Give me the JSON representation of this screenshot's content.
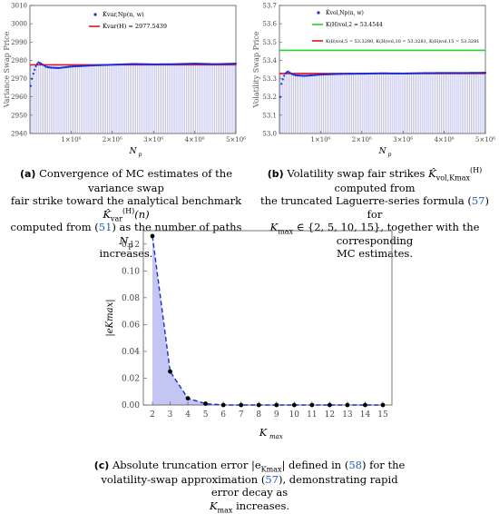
{
  "chart_data": [
    {
      "type": "bar+scatter",
      "ylabel": "Variance Swap Price",
      "xlabel": "N_p",
      "xlim": [
        0,
        5000000
      ],
      "ylim": [
        2940,
        3010
      ],
      "y_ticks": [
        2940,
        2950,
        2960,
        2970,
        2980,
        2990,
        3000,
        3010
      ],
      "x_ticks": [
        1000000,
        2000000,
        3000000,
        4000000,
        5000000
      ],
      "x_tick_labels": [
        "1×10⁶",
        "2×10⁶",
        "3×10⁶",
        "4×10⁶",
        "5×10⁶"
      ],
      "legend": [
        {
          "name": "K̂var,Np(n, w)",
          "color": "#1f2fd6",
          "marker": "point"
        },
        {
          "name": "K̂var(H) = 2977.5439",
          "color": "#e0141e",
          "marker": "line"
        }
      ],
      "benchmark": 2977.5439,
      "mc_series": {
        "x": [
          20000,
          60000,
          100000,
          150000,
          200000,
          300000,
          400000,
          500000,
          700000,
          1000000,
          1500000,
          2000000,
          2500000,
          3000000,
          3500000,
          4000000,
          4500000,
          5000000
        ],
        "y": [
          2966,
          2971,
          2974,
          2977,
          2979,
          2977.8,
          2976.4,
          2976.0,
          2975.8,
          2976.6,
          2977.2,
          2977.6,
          2978.0,
          2977.8,
          2977.9,
          2978.2,
          2977.9,
          2978.2
        ]
      }
    },
    {
      "type": "bar+scatter",
      "ylabel": "Volatility Swap Price",
      "xlabel": "N_p",
      "xlim": [
        0,
        5000000
      ],
      "ylim": [
        53.0,
        53.7
      ],
      "y_ticks": [
        53.0,
        53.1,
        53.2,
        53.3,
        53.4,
        53.5,
        53.6,
        53.7
      ],
      "x_ticks": [
        1000000,
        2000000,
        3000000,
        4000000,
        5000000
      ],
      "x_tick_labels": [
        "1×10⁶",
        "2×10⁶",
        "3×10⁶",
        "4×10⁶",
        "5×10⁶"
      ],
      "legend": [
        {
          "name": "K̂vol,Np(n, w)",
          "color": "#1f2fd6",
          "marker": "point"
        },
        {
          "name": "K(H)vol,2 = 53.4544",
          "color": "#2ecc2e",
          "marker": "line"
        },
        {
          "name": "K(H)vol,5 = 53.3280, K(H)vol,10 = 53.3281, K(H)vol,15 = 53.3281",
          "color": "#e0141e",
          "marker": "line"
        }
      ],
      "benchmarks": {
        "K2": 53.4544,
        "K5": 53.328,
        "K10": 53.3281,
        "K15": 53.3281
      },
      "mc_series": {
        "x": [
          20000,
          50000,
          100000,
          150000,
          200000,
          300000,
          400000,
          600000,
          800000,
          1000000,
          1500000,
          2000000,
          2500000,
          3000000,
          3500000,
          4000000,
          4500000,
          5000000
        ],
        "y": [
          53.2,
          53.27,
          53.31,
          53.33,
          53.34,
          53.325,
          53.318,
          53.315,
          53.318,
          53.322,
          53.326,
          53.327,
          53.329,
          53.328,
          53.33,
          53.331,
          53.331,
          53.332
        ]
      }
    },
    {
      "type": "line",
      "ylabel": "|eKmax|",
      "xlabel": "Kmax",
      "categories": [
        2,
        3,
        4,
        5,
        6,
        7,
        8,
        9,
        10,
        11,
        12,
        13,
        14,
        15
      ],
      "values": [
        0.126,
        0.025,
        0.005,
        0.001,
        0.0,
        0.0,
        0.0,
        0.0,
        0.0,
        0.0,
        0.0,
        0.0,
        0.0,
        0.0
      ],
      "ylim": [
        0,
        0.13
      ],
      "y_ticks": [
        0.0,
        0.02,
        0.04,
        0.06,
        0.08,
        0.1,
        0.12
      ],
      "y_tick_labels": [
        "0.00",
        "0.02",
        "0.04",
        "0.06",
        "0.08",
        "0.10",
        "0.12"
      ]
    }
  ],
  "captions": {
    "a": {
      "label": "(a)",
      "line1": "Convergence of MC estimates of the variance swap",
      "line2_pre": "fair strike toward the analytical benchmark",
      "line2_sym": "K̂",
      "line2_sub": "var",
      "line2_sup": "(H)",
      "line2_post": "(n)",
      "line3_pre": "computed from (",
      "line3_ref": "51",
      "line3_post": ") as the number of paths",
      "line3_sym": "N",
      "line3_sub": "p",
      "line4": "increases."
    },
    "b": {
      "label": "(b)",
      "line1_pre": "Volatility swap fair strikes",
      "line1_sym": "K̂",
      "line1_sub": "vol,Kmax",
      "line1_sup": "(H)",
      "line1_post": "computed from",
      "line2_pre": "the truncated Laguerre-series formula (",
      "line2_ref": "57",
      "line2_post": ") for",
      "line3_pre": "∈ {2, 5, 10, 15}, together with the corresponding",
      "line3_sym": "K",
      "line3_sub": "max",
      "line4": "MC estimates."
    },
    "c": {
      "label": "(c)",
      "line1_pre": "Absolute truncation error |e",
      "line1_sub": "Kmax",
      "line1_mid": "| defined in (",
      "line1_ref": "58",
      "line1_post": ") for the",
      "line2_pre": "volatility-swap approximation (",
      "line2_ref": "57",
      "line2_post": "), demonstrating rapid error decay as",
      "line3_sym": "K",
      "line3_sub": "max",
      "line3_post": "increases."
    }
  }
}
